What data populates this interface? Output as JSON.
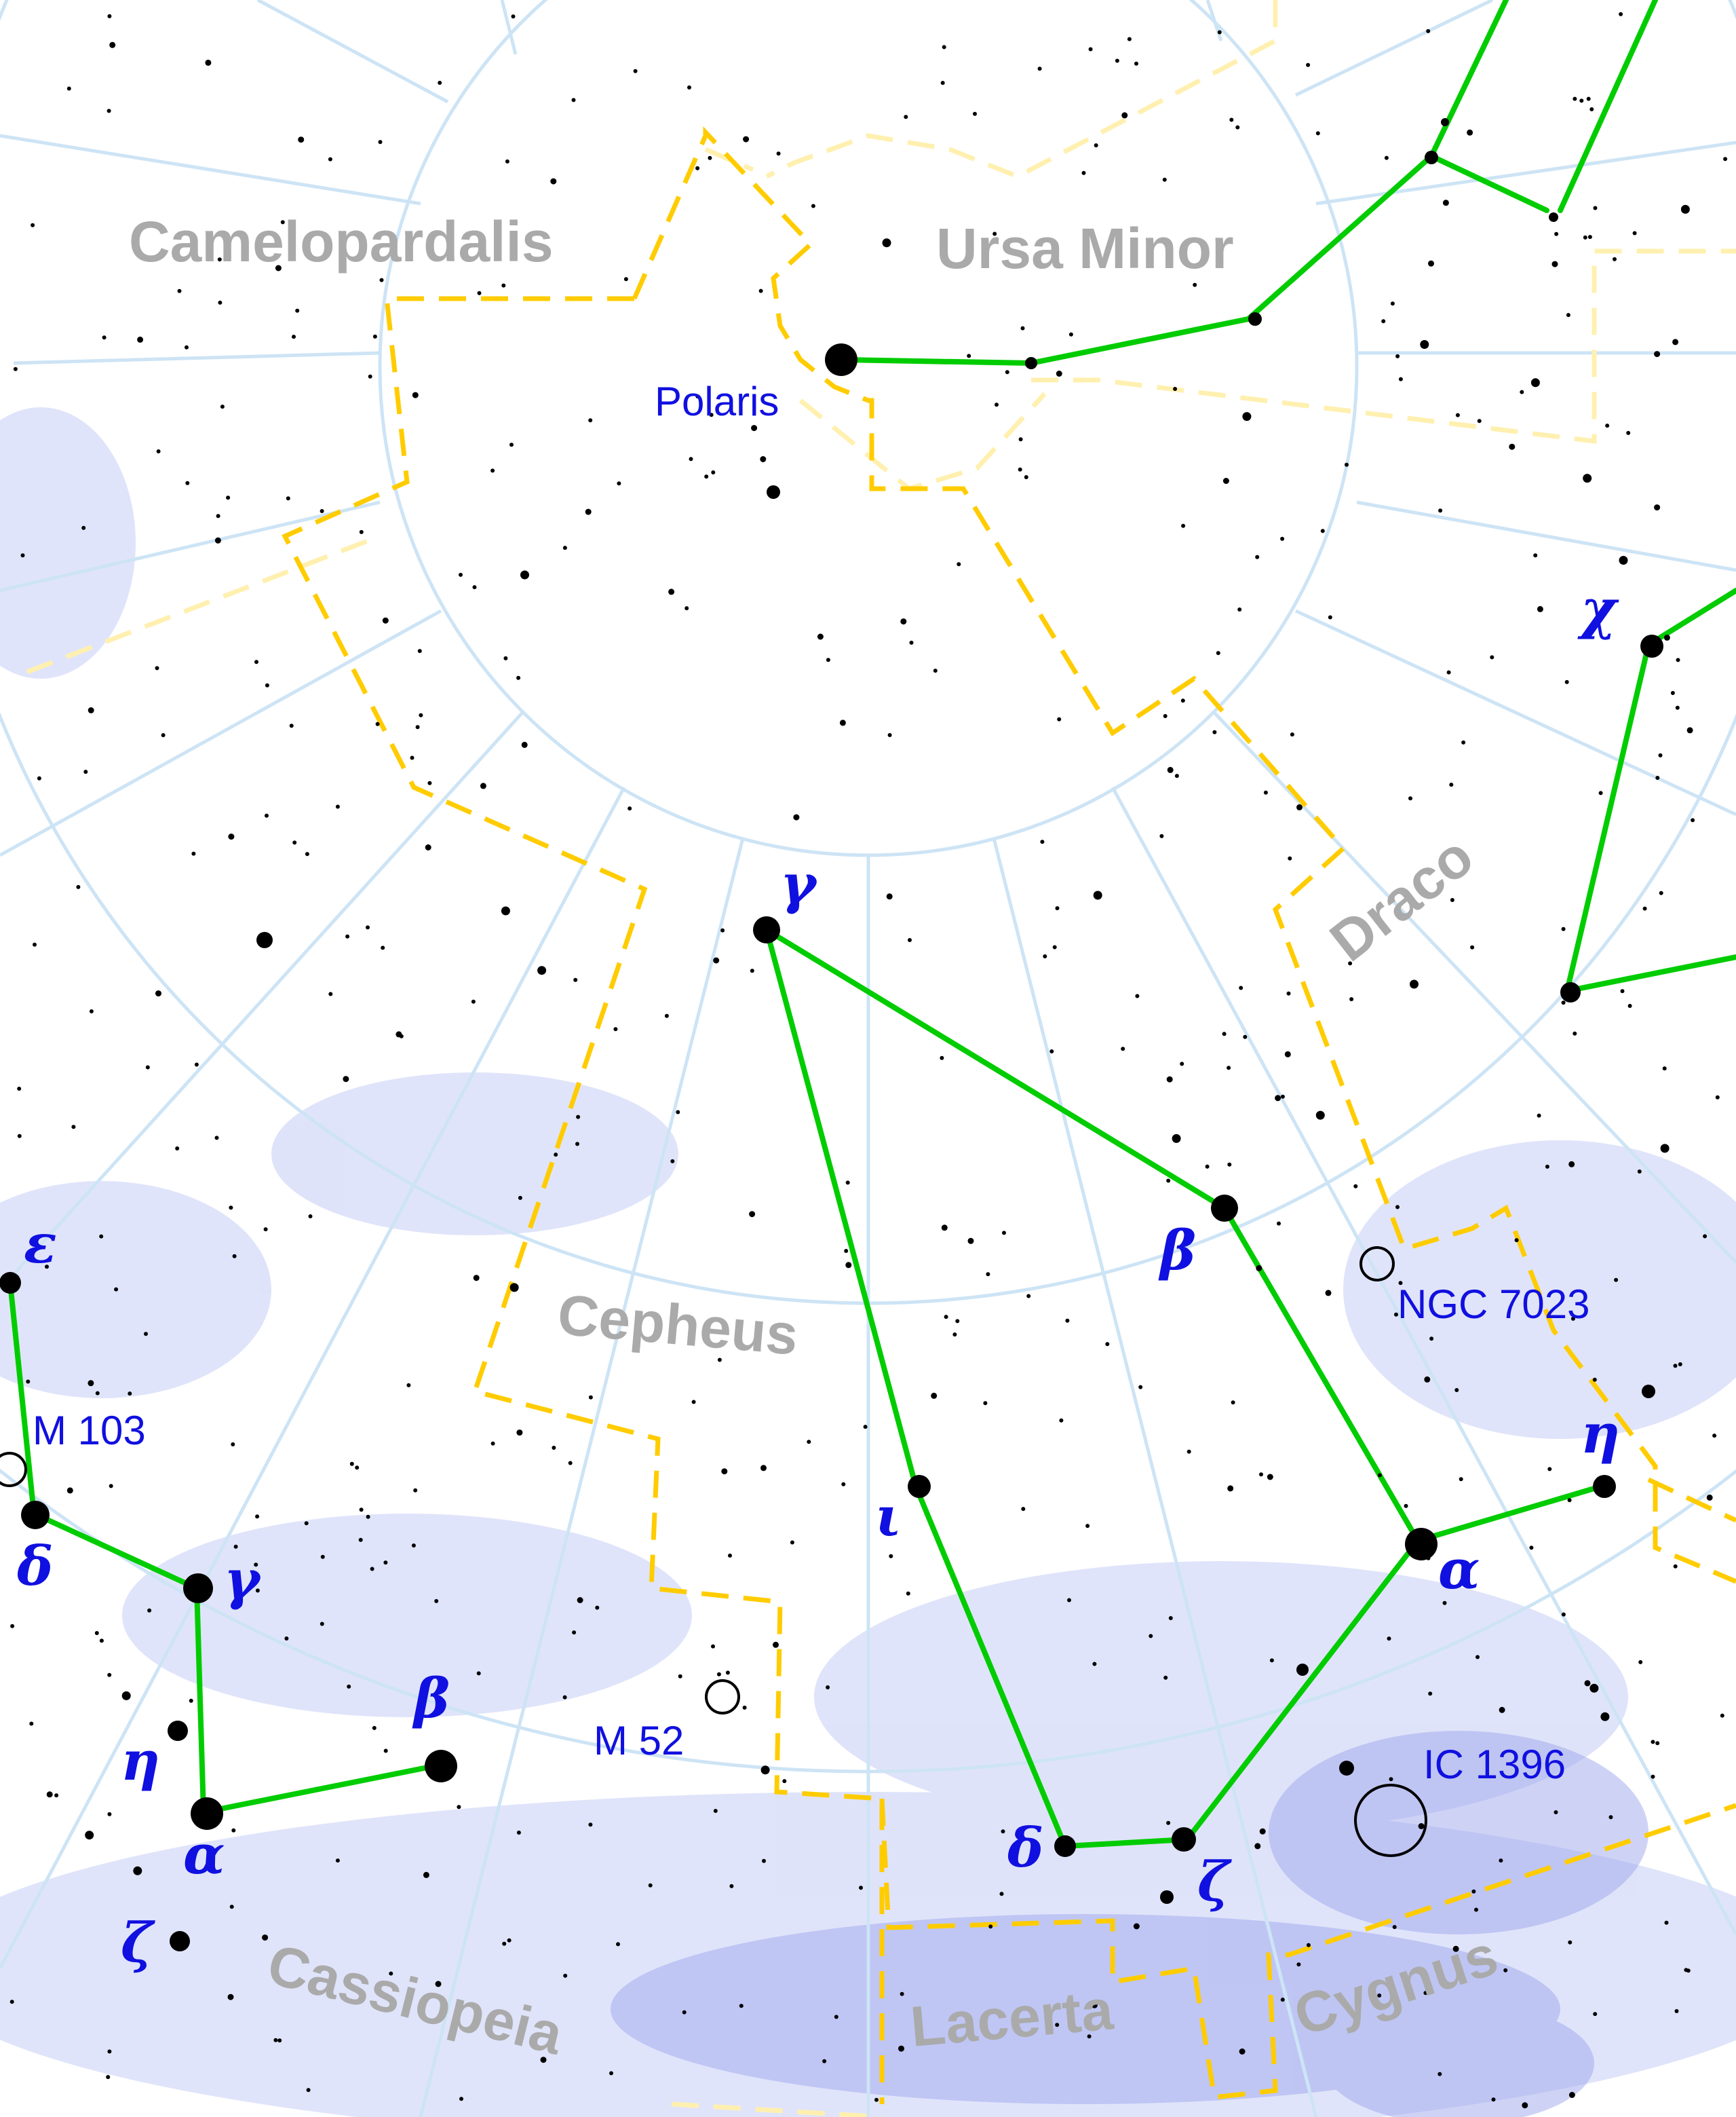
{
  "colors": {
    "background": "#ffffff",
    "milky_way": "#c6cdf5",
    "grid": "#cde4f5",
    "boundary": "#ffcc00",
    "boundary_faint": "#fff0b0",
    "stick_figure": "#00cc00",
    "star": "#000000",
    "label": "#1010e0",
    "constellation_name": "#aaaaaa"
  },
  "constellation_names": {
    "camelopardalis": "Camelopardalis",
    "ursa_minor": "Ursa Minor",
    "draco": "Draco",
    "cepheus": "Cepheus",
    "cassiopeia": "Cassiopeia",
    "lacerta": "Lacerta",
    "cygnus": "Cygnus"
  },
  "objects": {
    "polaris": "Polaris",
    "ngc7023": "NGC 7023",
    "m103": "M 103",
    "m52": "M 52",
    "ic1396": "IC 1396"
  },
  "greek_letters": {
    "cep_gamma": "γ",
    "cep_beta": "β",
    "cep_iota": "ι",
    "cep_alpha": "α",
    "cep_eta": "η",
    "cep_delta": "δ",
    "cep_zeta": "ζ",
    "dra_chi": "χ",
    "cas_epsilon": "ε",
    "cas_delta": "δ",
    "cas_gamma": "γ",
    "cas_beta": "β",
    "cas_eta": "η",
    "cas_alpha": "α",
    "cas_zeta": "ζ"
  }
}
